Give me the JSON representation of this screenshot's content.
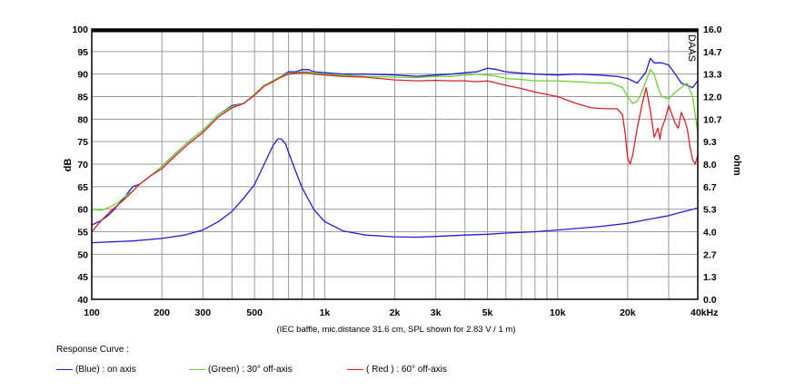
{
  "chart_data": {
    "type": "line",
    "x_scale": "log",
    "xlim": [
      100,
      40000
    ],
    "x_ticks": [
      {
        "value": 100,
        "label": "100"
      },
      {
        "value": 200,
        "label": "200"
      },
      {
        "value": 300,
        "label": "300"
      },
      {
        "value": 500,
        "label": "500"
      },
      {
        "value": 1000,
        "label": "1k"
      },
      {
        "value": 2000,
        "label": "2k"
      },
      {
        "value": 3000,
        "label": "3k"
      },
      {
        "value": 5000,
        "label": "5k"
      },
      {
        "value": 10000,
        "label": "10k"
      },
      {
        "value": 20000,
        "label": "20k"
      },
      {
        "value": 40000,
        "label": "40kHz"
      }
    ],
    "ylim_left": [
      40,
      100
    ],
    "left_ticks": [
      "100",
      "95",
      "90",
      "85",
      "80",
      "75",
      "70",
      "65",
      "60",
      "55",
      "50",
      "45",
      "40"
    ],
    "ylabel_left": "dB",
    "ylim_right": [
      0,
      16
    ],
    "right_ticks": [
      "16.0",
      "14.7",
      "13.3",
      "12.0",
      "10.7",
      "9.3",
      "8.0",
      "6.7",
      "5.3",
      "4.0",
      "2.7",
      "1.3",
      "0.0"
    ],
    "ylabel_right": "ohm",
    "grid": true,
    "watermark": "DAAS",
    "footnote": "(IEC baffle, mic.distance 31.6 cm, SPL shown for 2.83 V / 1 m)",
    "series": [
      {
        "name": "on axis",
        "color": "#1f1fd1",
        "axis": "left",
        "points": [
          [
            100,
            56.5
          ],
          [
            110,
            57.5
          ],
          [
            120,
            59
          ],
          [
            130,
            61
          ],
          [
            140,
            63
          ],
          [
            150,
            65
          ],
          [
            160,
            65.5
          ],
          [
            180,
            67.5
          ],
          [
            200,
            69.5
          ],
          [
            230,
            72.5
          ],
          [
            260,
            75
          ],
          [
            300,
            77.5
          ],
          [
            350,
            81
          ],
          [
            400,
            83
          ],
          [
            450,
            83.5
          ],
          [
            500,
            85.5
          ],
          [
            550,
            87.5
          ],
          [
            600,
            88.5
          ],
          [
            650,
            89.5
          ],
          [
            700,
            90.5
          ],
          [
            750,
            90.5
          ],
          [
            800,
            91
          ],
          [
            850,
            91
          ],
          [
            900,
            90.5
          ],
          [
            1000,
            90.3
          ],
          [
            1200,
            90
          ],
          [
            1500,
            90
          ],
          [
            2000,
            89.8
          ],
          [
            2500,
            89.5
          ],
          [
            3000,
            89.8
          ],
          [
            3500,
            90
          ],
          [
            4000,
            90.3
          ],
          [
            4500,
            90.5
          ],
          [
            5000,
            91.3
          ],
          [
            5500,
            91
          ],
          [
            6000,
            90.5
          ],
          [
            7000,
            90.2
          ],
          [
            8000,
            90
          ],
          [
            10000,
            89.8
          ],
          [
            12000,
            90
          ],
          [
            15000,
            89.8
          ],
          [
            18000,
            89.5
          ],
          [
            20000,
            89
          ],
          [
            22000,
            88
          ],
          [
            24000,
            90.5
          ],
          [
            25000,
            93.5
          ],
          [
            26000,
            92.5
          ],
          [
            28000,
            92.5
          ],
          [
            30000,
            92
          ],
          [
            32000,
            90
          ],
          [
            34000,
            88
          ],
          [
            36000,
            87.5
          ],
          [
            38000,
            87
          ],
          [
            40000,
            88.5
          ]
        ]
      },
      {
        "name": "30° off-axis",
        "color": "#6ad136",
        "axis": "left",
        "points": [
          [
            100,
            60
          ],
          [
            110,
            59.8
          ],
          [
            120,
            60.5
          ],
          [
            130,
            61.5
          ],
          [
            140,
            63
          ],
          [
            150,
            64
          ],
          [
            160,
            65.5
          ],
          [
            180,
            67.5
          ],
          [
            200,
            69.5
          ],
          [
            230,
            72.5
          ],
          [
            260,
            75
          ],
          [
            300,
            77.5
          ],
          [
            350,
            81
          ],
          [
            400,
            82.8
          ],
          [
            450,
            83.5
          ],
          [
            500,
            85.5
          ],
          [
            550,
            87.5
          ],
          [
            600,
            88.5
          ],
          [
            650,
            89.5
          ],
          [
            700,
            90.2
          ],
          [
            750,
            90.3
          ],
          [
            800,
            90.5
          ],
          [
            850,
            90.5
          ],
          [
            900,
            90.3
          ],
          [
            1000,
            90
          ],
          [
            1200,
            89.8
          ],
          [
            1500,
            89.5
          ],
          [
            2000,
            89.3
          ],
          [
            2500,
            89.2
          ],
          [
            3000,
            89.5
          ],
          [
            3500,
            89.5
          ],
          [
            4000,
            89.8
          ],
          [
            4500,
            90
          ],
          [
            5000,
            89.8
          ],
          [
            5500,
            89.5
          ],
          [
            6000,
            89
          ],
          [
            7000,
            88.8
          ],
          [
            8000,
            88.5
          ],
          [
            10000,
            88.5
          ],
          [
            12000,
            88.3
          ],
          [
            15000,
            88
          ],
          [
            17000,
            88
          ],
          [
            19000,
            87
          ],
          [
            20000,
            85
          ],
          [
            21000,
            83.5
          ],
          [
            22000,
            84
          ],
          [
            23000,
            86
          ],
          [
            24000,
            88.5
          ],
          [
            25000,
            91
          ],
          [
            26000,
            90
          ],
          [
            27000,
            87
          ],
          [
            28000,
            85
          ],
          [
            30000,
            84.5
          ],
          [
            32000,
            86
          ],
          [
            34000,
            87
          ],
          [
            36000,
            88
          ],
          [
            38000,
            85
          ],
          [
            40000,
            77
          ]
        ]
      },
      {
        "name": "60° off-axis",
        "color": "#d32424",
        "axis": "left",
        "points": [
          [
            100,
            55
          ],
          [
            110,
            57.5
          ],
          [
            120,
            59.5
          ],
          [
            130,
            61
          ],
          [
            140,
            62.5
          ],
          [
            150,
            64
          ],
          [
            160,
            65.5
          ],
          [
            180,
            67.5
          ],
          [
            200,
            69
          ],
          [
            230,
            72
          ],
          [
            260,
            74.5
          ],
          [
            300,
            77
          ],
          [
            350,
            80.5
          ],
          [
            400,
            82.5
          ],
          [
            450,
            83.5
          ],
          [
            500,
            85.3
          ],
          [
            550,
            87.3
          ],
          [
            600,
            88.3
          ],
          [
            650,
            89.3
          ],
          [
            700,
            90
          ],
          [
            750,
            90.2
          ],
          [
            800,
            90.3
          ],
          [
            850,
            90.3
          ],
          [
            900,
            90
          ],
          [
            1000,
            89.8
          ],
          [
            1200,
            89.5
          ],
          [
            1500,
            89.3
          ],
          [
            2000,
            88.7
          ],
          [
            2500,
            88.5
          ],
          [
            3000,
            88.6
          ],
          [
            3500,
            88.5
          ],
          [
            4000,
            88.5
          ],
          [
            4500,
            88.3
          ],
          [
            5000,
            88.5
          ],
          [
            5500,
            88
          ],
          [
            6000,
            87.5
          ],
          [
            7000,
            86.8
          ],
          [
            8000,
            86
          ],
          [
            10000,
            85
          ],
          [
            12000,
            83.5
          ],
          [
            14000,
            82.5
          ],
          [
            16000,
            82.3
          ],
          [
            18000,
            82.3
          ],
          [
            19000,
            81
          ],
          [
            19500,
            77
          ],
          [
            20000,
            71.5
          ],
          [
            20500,
            70
          ],
          [
            21000,
            72
          ],
          [
            22000,
            78
          ],
          [
            23000,
            83
          ],
          [
            24000,
            87
          ],
          [
            25000,
            82
          ],
          [
            26000,
            76
          ],
          [
            27000,
            78
          ],
          [
            27500,
            75.5
          ],
          [
            28000,
            78
          ],
          [
            29000,
            80
          ],
          [
            30000,
            83
          ],
          [
            31000,
            81
          ],
          [
            32000,
            79
          ],
          [
            33000,
            78
          ],
          [
            34000,
            81.5
          ],
          [
            35000,
            80
          ],
          [
            36000,
            78
          ],
          [
            37000,
            74
          ],
          [
            38000,
            71
          ],
          [
            39000,
            70
          ],
          [
            40000,
            72
          ]
        ]
      },
      {
        "name": "Impedance",
        "color": "#1f1fd1",
        "axis": "right",
        "points": [
          [
            100,
            3.35
          ],
          [
            150,
            3.45
          ],
          [
            200,
            3.6
          ],
          [
            250,
            3.8
          ],
          [
            300,
            4.1
          ],
          [
            350,
            4.6
          ],
          [
            400,
            5.2
          ],
          [
            450,
            6.0
          ],
          [
            500,
            6.8
          ],
          [
            550,
            8.0
          ],
          [
            600,
            9.1
          ],
          [
            630,
            9.5
          ],
          [
            650,
            9.5
          ],
          [
            680,
            9.2
          ],
          [
            700,
            8.7
          ],
          [
            750,
            7.6
          ],
          [
            800,
            6.6
          ],
          [
            900,
            5.3
          ],
          [
            1000,
            4.6
          ],
          [
            1200,
            4.05
          ],
          [
            1500,
            3.8
          ],
          [
            2000,
            3.7
          ],
          [
            2500,
            3.68
          ],
          [
            3000,
            3.72
          ],
          [
            4000,
            3.8
          ],
          [
            5000,
            3.85
          ],
          [
            6000,
            3.92
          ],
          [
            8000,
            4.0
          ],
          [
            10000,
            4.1
          ],
          [
            15000,
            4.3
          ],
          [
            20000,
            4.5
          ],
          [
            25000,
            4.75
          ],
          [
            30000,
            4.95
          ],
          [
            35000,
            5.2
          ],
          [
            40000,
            5.4
          ]
        ]
      }
    ]
  },
  "legend": {
    "title": "Response Curve :",
    "items": [
      {
        "text": "(Blue)  : on axis",
        "color": "#1f1fd1"
      },
      {
        "text": "(Green) : 30° off-axis",
        "color": "#6ad136"
      },
      {
        "text": "( Red ) : 60° off-axis",
        "color": "#d32424"
      }
    ]
  }
}
